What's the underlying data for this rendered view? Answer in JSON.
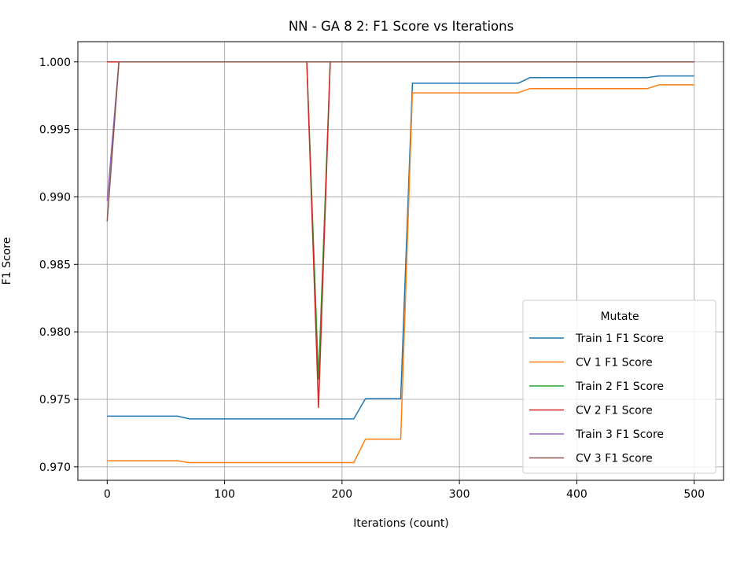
{
  "chart_data": {
    "type": "line",
    "title": "NN - GA 8 2: F1 Score vs Iterations",
    "xlabel": "Iterations (count)",
    "ylabel": "F1 Score",
    "xlim": [
      -25,
      525
    ],
    "ylim": [
      0.969,
      1.0015
    ],
    "xticks": [
      0,
      100,
      200,
      300,
      400,
      500
    ],
    "xtick_labels": [
      "0",
      "100",
      "200",
      "300",
      "400",
      "500"
    ],
    "yticks": [
      0.97,
      0.975,
      0.98,
      0.985,
      0.99,
      0.995,
      1.0
    ],
    "ytick_labels": [
      "0.970",
      "0.975",
      "0.980",
      "0.985",
      "0.990",
      "0.995",
      "1.000"
    ],
    "grid": true,
    "legend": {
      "title": "Mutate",
      "placement": "lower-right"
    },
    "series": [
      {
        "name": "Train 1 F1 Score",
        "color": "#1f77b4",
        "points": [
          [
            0,
            0.97375
          ],
          [
            60,
            0.97375
          ],
          [
            70,
            0.97355
          ],
          [
            210,
            0.97355
          ],
          [
            220,
            0.97505
          ],
          [
            250,
            0.97505
          ],
          [
            260,
            0.99842
          ],
          [
            350,
            0.99842
          ],
          [
            360,
            0.99883
          ],
          [
            460,
            0.99883
          ],
          [
            470,
            0.99896
          ],
          [
            500,
            0.99896
          ]
        ]
      },
      {
        "name": "CV 1 F1 Score",
        "color": "#ff7f0e",
        "points": [
          [
            0,
            0.97045
          ],
          [
            60,
            0.97045
          ],
          [
            70,
            0.97031
          ],
          [
            210,
            0.97031
          ],
          [
            220,
            0.97205
          ],
          [
            250,
            0.97205
          ],
          [
            260,
            0.99771
          ],
          [
            350,
            0.99771
          ],
          [
            360,
            0.99802
          ],
          [
            460,
            0.99802
          ],
          [
            470,
            0.9983
          ],
          [
            500,
            0.9983
          ]
        ]
      },
      {
        "name": "Train 2 F1 Score",
        "color": "#2ca02c",
        "points": [
          [
            0,
            1.0
          ],
          [
            170,
            1.0
          ],
          [
            180,
            0.9765
          ],
          [
            190,
            1.0
          ],
          [
            500,
            1.0
          ]
        ]
      },
      {
        "name": "CV 2 F1 Score",
        "color": "#d62728",
        "points": [
          [
            0,
            1.0
          ],
          [
            170,
            1.0
          ],
          [
            180,
            0.9744
          ],
          [
            190,
            1.0
          ],
          [
            500,
            1.0
          ]
        ]
      },
      {
        "name": "Train 3 F1 Score",
        "color": "#9467bd",
        "points": [
          [
            0,
            0.9897
          ],
          [
            10,
            1.0
          ],
          [
            500,
            1.0
          ]
        ]
      },
      {
        "name": "CV 3 F1 Score",
        "color": "#8c564b",
        "points": [
          [
            0,
            0.9882
          ],
          [
            10,
            1.0
          ],
          [
            500,
            1.0
          ]
        ]
      }
    ]
  }
}
